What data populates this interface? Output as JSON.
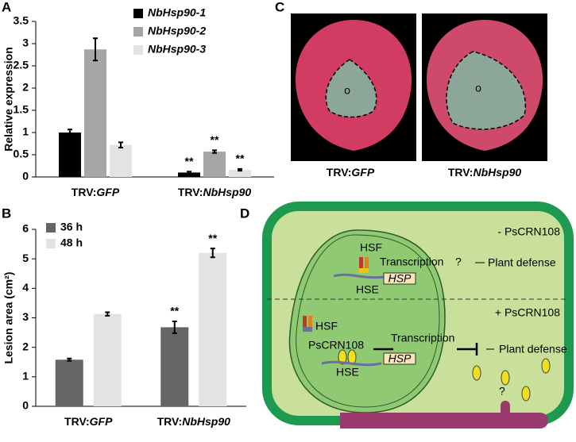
{
  "chart_data": [
    {
      "type": "bar",
      "panel": "A",
      "y_label": "Relative expression",
      "categories": [
        "TRV:GFP",
        "TRV:NbHsp90"
      ],
      "series": [
        {
          "name": "NbHsp90-1",
          "color": "#000000",
          "values": [
            1.0,
            0.1
          ],
          "errors": [
            0.07,
            0.02
          ],
          "annotations": [
            null,
            "**"
          ]
        },
        {
          "name": "NbHsp90-2",
          "color": "#a6a6a6",
          "values": [
            2.87,
            0.57
          ],
          "errors": [
            0.25,
            0.03
          ],
          "annotations": [
            null,
            "**"
          ]
        },
        {
          "name": "NbHsp90-3",
          "color": "#e3e3e3",
          "values": [
            0.72,
            0.16
          ],
          "errors": [
            0.06,
            0.02
          ],
          "annotations": [
            null,
            "**"
          ]
        }
      ],
      "ylim": [
        0,
        3.5
      ],
      "yticks": [
        0,
        0.5,
        1,
        1.5,
        2,
        2.5,
        3,
        3.5
      ],
      "grid": false,
      "legend": "top-center"
    },
    {
      "type": "bar",
      "panel": "B",
      "y_label": "Lesion area (cm²)",
      "categories": [
        "TRV:GFP",
        "TRV:NbHsp90"
      ],
      "series": [
        {
          "name": "36 h",
          "color": "#666666",
          "values": [
            1.58,
            2.68
          ],
          "errors": [
            0.04,
            0.2
          ],
          "annotations": [
            null,
            "**"
          ]
        },
        {
          "name": "48 h",
          "color": "#e3e3e3",
          "values": [
            3.13,
            5.2
          ],
          "errors": [
            0.06,
            0.15
          ],
          "annotations": [
            null,
            "**"
          ]
        }
      ],
      "ylim": [
        0,
        6
      ],
      "yticks": [
        0,
        1,
        2,
        3,
        4,
        5,
        6
      ],
      "grid": false,
      "legend": "top-left"
    }
  ],
  "photos": {
    "panel": "C",
    "labels": [
      "TRV:GFP",
      "TRV:NbHsp90"
    ],
    "marks": [
      "o",
      "o"
    ]
  },
  "diagram": {
    "panel": "D",
    "top": {
      "condition": "- PsCRN108",
      "hsf": "HSF",
      "transcription": "Transcription",
      "question": "?",
      "defense": "Plant defense",
      "hsp": "HSP",
      "hse": "HSE"
    },
    "bottom": {
      "condition": "+ PsCRN108",
      "hsf": "HSF",
      "effector": "PsCRN108",
      "transcription": "Transcription",
      "hse": "HSE",
      "hsp": "HSP",
      "defense": "Plant defense",
      "question": "?"
    }
  }
}
